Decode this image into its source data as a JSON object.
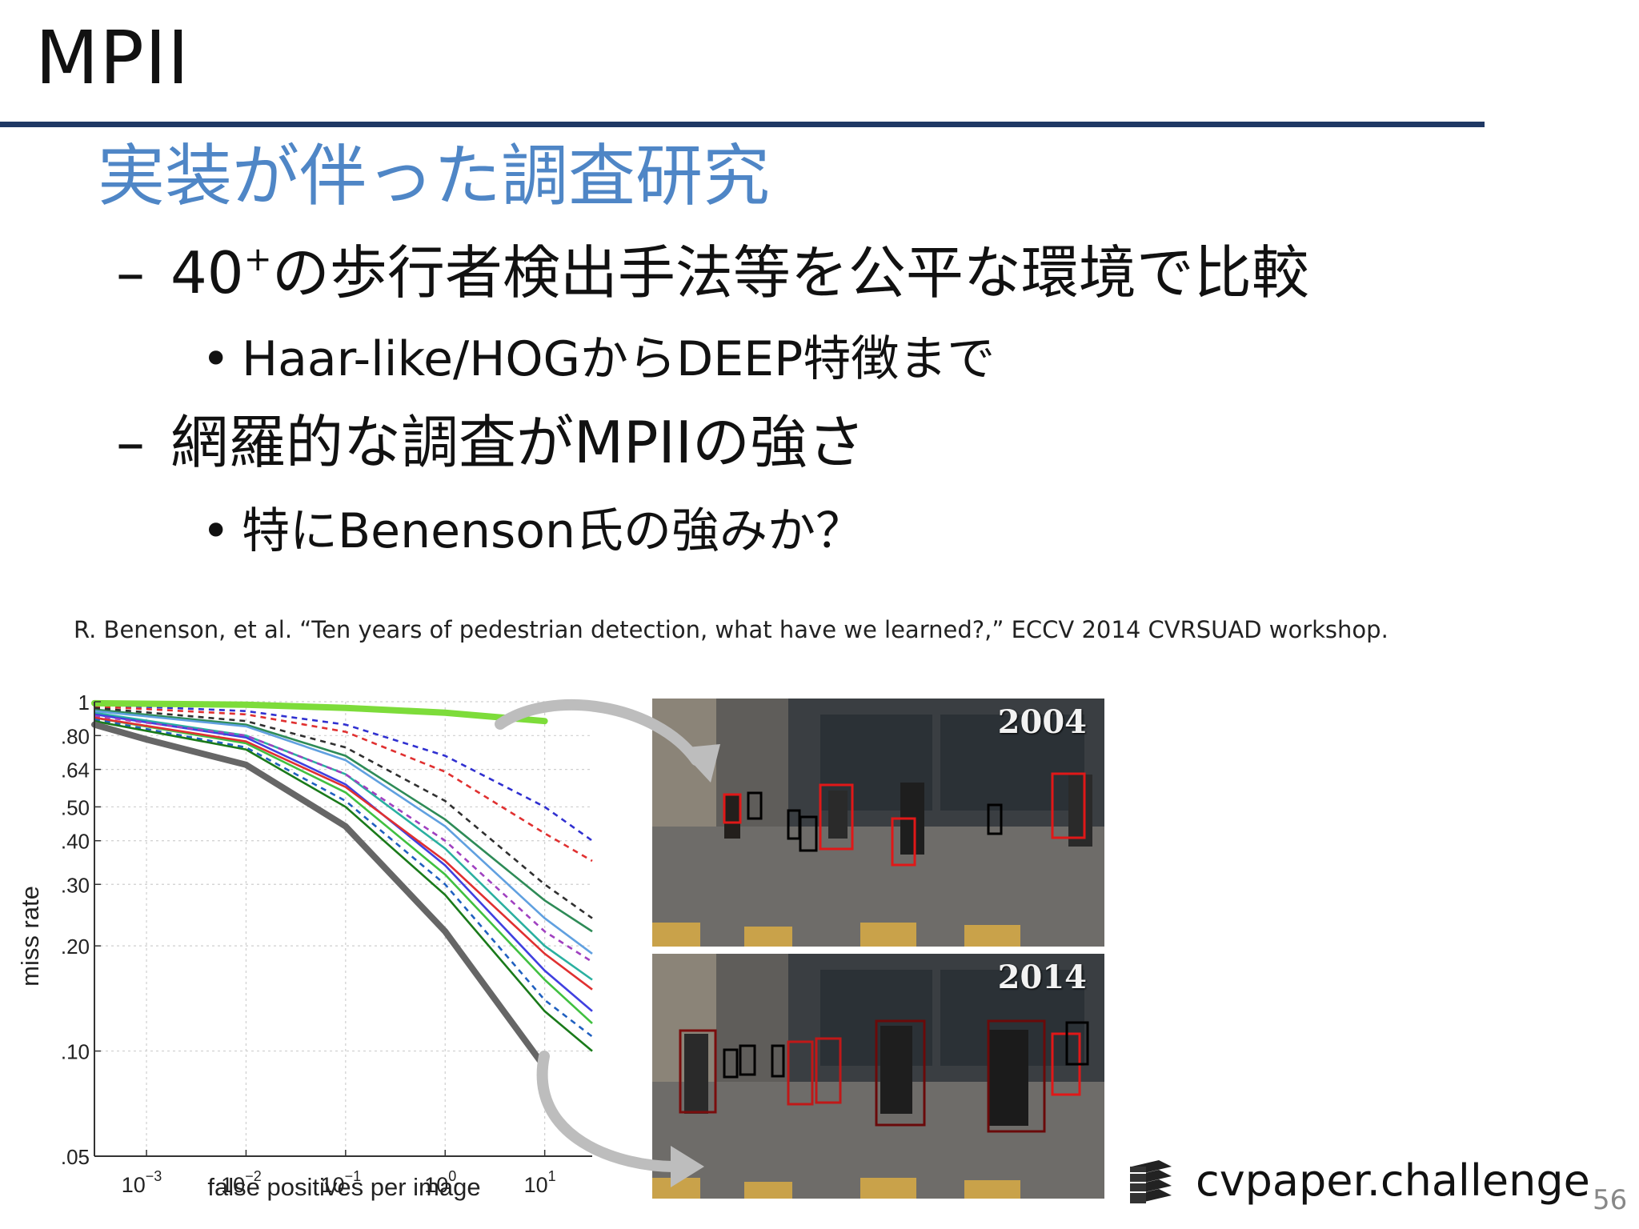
{
  "slide": {
    "title": "MPII",
    "heading": "実装が伴った調査研究",
    "bullets": [
      {
        "level": 1,
        "pre": "40",
        "sup": "+",
        "text": "の歩行者検出手法等を公平な環境で比較"
      },
      {
        "level": 2,
        "text": "Haar-like/HOGからDEEP特徴まで"
      },
      {
        "level": 1,
        "text": "網羅的な調査がMPIIの強さ"
      },
      {
        "level": 2,
        "text": "特にBenenson氏の強みか？"
      }
    ],
    "dash": "–",
    "dot": "•",
    "citation": "R. Benenson, et al. “Ten years of pedestrian detection, what have we learned?,” ECCV 2014 CVRSUAD workshop.",
    "page_number": "56"
  },
  "photos": [
    {
      "year": "2004"
    },
    {
      "year": "2014"
    }
  ],
  "logo": {
    "text": "cvpaper.challenge",
    "icon": "stacked-layers-icon"
  },
  "colors": {
    "title_rule": "#1f3864",
    "heading": "#4f86c6",
    "best_2004": "#7ddc3a",
    "best_2014": "#666666"
  },
  "chart_data": {
    "type": "line",
    "xlabel": "false positives per image",
    "ylabel": "miss rate",
    "xscale": "log",
    "yscale": "log",
    "xlim": [
      0.0003,
      30
    ],
    "ylim": [
      0.05,
      1
    ],
    "xtick_labels": [
      {
        "base": "10",
        "exp": "−3",
        "value": 0.001
      },
      {
        "base": "10",
        "exp": "−2",
        "value": 0.01
      },
      {
        "base": "10",
        "exp": "−1",
        "value": 0.1
      },
      {
        "base": "10",
        "exp": "0",
        "value": 1
      },
      {
        "base": "10",
        "exp": "1",
        "value": 10
      }
    ],
    "ytick_labels": [
      {
        "label": "1",
        "value": 1
      },
      {
        "label": ".80",
        "value": 0.8
      },
      {
        "label": ".64",
        "value": 0.64
      },
      {
        "label": ".50",
        "value": 0.5
      },
      {
        "label": ".40",
        "value": 0.4
      },
      {
        "label": ".30",
        "value": 0.3
      },
      {
        "label": ".20",
        "value": 0.2
      },
      {
        "label": ".10",
        "value": 0.1
      },
      {
        "label": ".05",
        "value": 0.05
      }
    ],
    "grid": true,
    "highlight": [
      {
        "year": "2004",
        "color": "#7ddc3a",
        "x": [
          0.0003,
          0.01,
          0.1,
          1,
          10
        ],
        "y": [
          0.99,
          0.98,
          0.96,
          0.93,
          0.88
        ]
      },
      {
        "year": "2014",
        "color": "#666666",
        "x": [
          0.0003,
          0.001,
          0.01,
          0.1,
          1,
          10
        ],
        "y": [
          0.86,
          0.78,
          0.66,
          0.44,
          0.22,
          0.09
        ]
      }
    ],
    "series": [
      {
        "color": "#2e8b57",
        "dash": false,
        "x": [
          0.0003,
          0.01,
          0.1,
          1,
          10,
          30
        ],
        "y": [
          0.95,
          0.86,
          0.7,
          0.46,
          0.27,
          0.22
        ]
      },
      {
        "color": "#e03030",
        "dash": true,
        "x": [
          0.0003,
          0.01,
          0.1,
          1,
          10,
          30
        ],
        "y": [
          0.97,
          0.92,
          0.82,
          0.63,
          0.42,
          0.35
        ]
      },
      {
        "color": "#3030d0",
        "dash": true,
        "x": [
          0.0003,
          0.01,
          0.1,
          1,
          10,
          30
        ],
        "y": [
          0.98,
          0.94,
          0.86,
          0.7,
          0.5,
          0.4
        ]
      },
      {
        "color": "#2ab0a0",
        "dash": false,
        "x": [
          0.0003,
          0.01,
          0.1,
          1,
          10,
          30
        ],
        "y": [
          0.93,
          0.8,
          0.62,
          0.38,
          0.2,
          0.16
        ]
      },
      {
        "color": "#303030",
        "dash": true,
        "x": [
          0.0003,
          0.01,
          0.1,
          1,
          10,
          30
        ],
        "y": [
          0.96,
          0.88,
          0.74,
          0.52,
          0.3,
          0.24
        ]
      },
      {
        "color": "#4040e0",
        "dash": false,
        "x": [
          0.0003,
          0.01,
          0.1,
          1,
          10,
          30
        ],
        "y": [
          0.92,
          0.79,
          0.58,
          0.34,
          0.17,
          0.13
        ]
      },
      {
        "color": "#40c040",
        "dash": false,
        "x": [
          0.0003,
          0.01,
          0.1,
          1,
          10,
          30
        ],
        "y": [
          0.9,
          0.76,
          0.55,
          0.32,
          0.16,
          0.12
        ]
      },
      {
        "color": "#a040c0",
        "dash": true,
        "x": [
          0.0003,
          0.01,
          0.1,
          1,
          10,
          30
        ],
        "y": [
          0.91,
          0.8,
          0.62,
          0.4,
          0.22,
          0.18
        ]
      },
      {
        "color": "#e03030",
        "dash": false,
        "x": [
          0.0003,
          0.01,
          0.1,
          1,
          10,
          30
        ],
        "y": [
          0.9,
          0.77,
          0.57,
          0.35,
          0.19,
          0.15
        ]
      },
      {
        "color": "#60a0e0",
        "dash": false,
        "x": [
          0.0003,
          0.01,
          0.1,
          1,
          10,
          30
        ],
        "y": [
          0.94,
          0.85,
          0.68,
          0.44,
          0.24,
          0.19
        ]
      },
      {
        "color": "#2060c0",
        "dash": true,
        "x": [
          0.0003,
          0.01,
          0.1,
          1,
          10,
          30
        ],
        "y": [
          0.89,
          0.74,
          0.52,
          0.3,
          0.14,
          0.11
        ]
      },
      {
        "color": "#1a7a1a",
        "dash": false,
        "x": [
          0.0003,
          0.01,
          0.1,
          1,
          10,
          30
        ],
        "y": [
          0.88,
          0.73,
          0.5,
          0.28,
          0.13,
          0.1
        ]
      }
    ]
  }
}
